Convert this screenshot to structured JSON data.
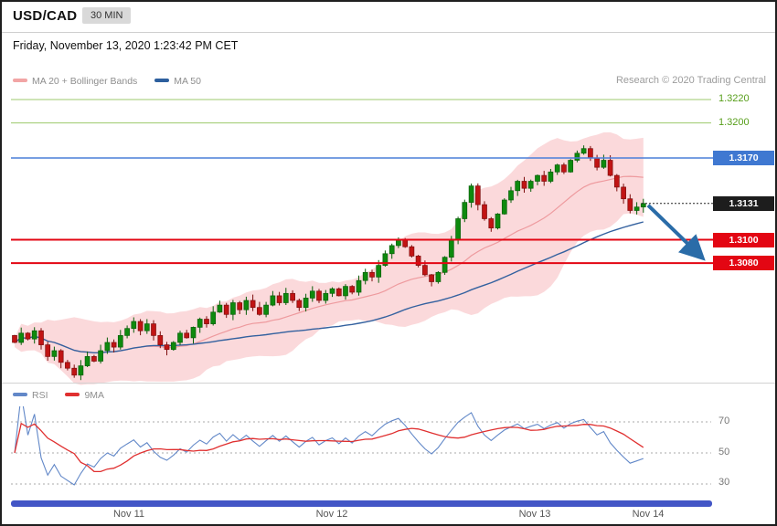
{
  "header": {
    "symbol": "USD/CAD",
    "timeframe": "30 MIN"
  },
  "datetime": "Friday, November 13, 2020 1:23:42 PM CET",
  "credit": "Research © 2020 Trading Central",
  "legend_main": [
    {
      "label": "MA 20 + Bollinger Bands",
      "color": "#f2a5a5"
    },
    {
      "label": "MA 50",
      "color": "#2d5f9e"
    }
  ],
  "legend_rsi": [
    {
      "label": "RSI",
      "color": "#6288c8"
    },
    {
      "label": "9MA",
      "color": "#e03030"
    }
  ],
  "levels": [
    {
      "value": "1.3220",
      "type": "resistance",
      "color": "#579e1a",
      "style": "text"
    },
    {
      "value": "1.3200",
      "type": "resistance",
      "color": "#579e1a",
      "style": "text"
    },
    {
      "value": "1.3170",
      "type": "pivot",
      "color": "#3f78d1",
      "style": "box"
    },
    {
      "value": "1.3131",
      "type": "last-price",
      "color": "#1d1d1d",
      "style": "box"
    },
    {
      "value": "1.3100",
      "type": "support",
      "color": "#e30613",
      "style": "box"
    },
    {
      "value": "1.3080",
      "type": "support",
      "color": "#e30613",
      "style": "box"
    }
  ],
  "rsi_axis": [
    "70",
    "50",
    "30"
  ],
  "x_axis": [
    "Nov 11",
    "Nov 12",
    "Nov 13",
    "Nov 14"
  ],
  "chart_data": {
    "type": "candlestick",
    "title": "USD/CAD 30 MIN",
    "x_labels": [
      "Nov 11",
      "Nov 12",
      "Nov 13",
      "Nov 14"
    ],
    "ylim": [
      1.2975,
      1.323
    ],
    "closes": [
      1.3012,
      1.302,
      1.3015,
      1.3022,
      1.301,
      1.3,
      1.3005,
      1.2995,
      1.299,
      1.2984,
      1.2992,
      1.3,
      1.2996,
      1.3005,
      1.3012,
      1.3008,
      1.3018,
      1.3024,
      1.303,
      1.3022,
      1.3028,
      1.3018,
      1.301,
      1.3006,
      1.3012,
      1.302,
      1.3016,
      1.3025,
      1.3032,
      1.3028,
      1.3038,
      1.3044,
      1.3036,
      1.3046,
      1.304,
      1.3048,
      1.3042,
      1.3036,
      1.3044,
      1.3052,
      1.3046,
      1.3054,
      1.3048,
      1.3042,
      1.305,
      1.3056,
      1.3048,
      1.3054,
      1.3058,
      1.3052,
      1.306,
      1.3055,
      1.3065,
      1.3072,
      1.3068,
      1.3078,
      1.3088,
      1.3095,
      1.31,
      1.3094,
      1.3086,
      1.3078,
      1.307,
      1.3064,
      1.3072,
      1.3085,
      1.31,
      1.3118,
      1.3132,
      1.3146,
      1.313,
      1.3118,
      1.311,
      1.3122,
      1.3134,
      1.3142,
      1.315,
      1.3144,
      1.315,
      1.3155,
      1.315,
      1.3158,
      1.3164,
      1.3158,
      1.3168,
      1.3174,
      1.3178,
      1.317,
      1.3162,
      1.3168,
      1.3155,
      1.3145,
      1.3135,
      1.3125,
      1.3128,
      1.3131
    ],
    "levels": {
      "r2": 1.322,
      "r1": 1.32,
      "pivot_blue": 1.317,
      "last": 1.3131,
      "s1": 1.31,
      "s2": 1.308
    },
    "indicators": {
      "ma20_bollinger": {
        "period": 20,
        "stdev": 2
      },
      "ma50": {
        "period": 50
      },
      "rsi": {
        "period": 14,
        "smoothing_ma": 9,
        "grid": [
          70,
          50,
          30
        ]
      }
    },
    "arrow": {
      "direction": "down",
      "from_price": 1.3131,
      "to_price": 1.308
    },
    "colors": {
      "candle_up": "#0e8a0e",
      "candle_down": "#c11414",
      "boll_fill": "rgba(246,170,175,0.45)",
      "ma20": "#ee9a9e",
      "ma50": "#33619f",
      "rsi": "#6288c8",
      "rsi_ma9": "#e03030",
      "support": "#e30613",
      "resistance": "#9cc96c",
      "pivot_line": "#4a7fd9",
      "arrow": "#2a6ca8",
      "last_label": "#1d1d1d",
      "scrollbar": "#4356c6"
    }
  }
}
